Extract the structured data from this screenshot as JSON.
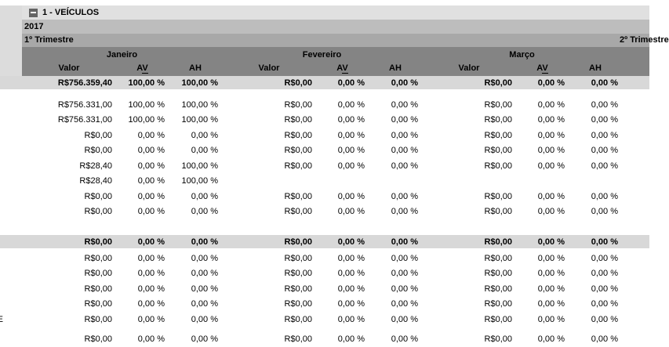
{
  "tree": {
    "label": "1 - VEÍCULOS"
  },
  "icons": {
    "collapse": "minus-icon"
  },
  "header": {
    "year": "2017",
    "quarter_current": "1º Trimestre",
    "quarter_next": "2º Trimestre",
    "months": [
      "Janeiro",
      "Fevereiro",
      "Março"
    ],
    "columns": {
      "valor": "Valor",
      "av": "AV",
      "ah": "AH"
    }
  },
  "colors": {
    "tree_band_bg": "#e0e0e0",
    "gutter_bg": "#dcdcdc",
    "year_band_bg": "#bdbdbd",
    "quarter_band_bg": "#a8a8a8",
    "month_band_bg": "#848484",
    "summary_row_bg": "#d8d8d8",
    "collapse_icon_bg": "#646464"
  },
  "table": {
    "rows": [
      {
        "kind": "summary",
        "gutter": "",
        "cells": [
          "R$756.359,40",
          "100,00 %",
          "100,00 %",
          "R$0,00",
          "0,00 %",
          "0,00 %",
          "R$0,00",
          "0,00 %",
          "0,00 %"
        ]
      },
      {
        "kind": "data",
        "gutter": "",
        "cells": [
          "R$756.331,00",
          "100,00 %",
          "100,00 %",
          "R$0,00",
          "0,00 %",
          "0,00 %",
          "R$0,00",
          "0,00 %",
          "0,00 %"
        ]
      },
      {
        "kind": "data",
        "gutter": "",
        "cells": [
          "R$756.331,00",
          "100,00 %",
          "100,00 %",
          "R$0,00",
          "0,00 %",
          "0,00 %",
          "R$0,00",
          "0,00 %",
          "0,00 %"
        ]
      },
      {
        "kind": "data",
        "gutter": "",
        "cells": [
          "R$0,00",
          "0,00 %",
          "0,00 %",
          "R$0,00",
          "0,00 %",
          "0,00 %",
          "R$0,00",
          "0,00 %",
          "0,00 %"
        ]
      },
      {
        "kind": "data",
        "gutter": "",
        "cells": [
          "R$0,00",
          "0,00 %",
          "0,00 %",
          "R$0,00",
          "0,00 %",
          "0,00 %",
          "R$0,00",
          "0,00 %",
          "0,00 %"
        ]
      },
      {
        "kind": "data",
        "gutter": "",
        "cells": [
          "R$28,40",
          "0,00 %",
          "100,00 %",
          "R$0,00",
          "0,00 %",
          "0,00 %",
          "R$0,00",
          "0,00 %",
          "0,00 %"
        ]
      },
      {
        "kind": "data",
        "gutter": "",
        "cells": [
          "R$28,40",
          "0,00 %",
          "100,00 %",
          "",
          "",
          "",
          "",
          "",
          ""
        ]
      },
      {
        "kind": "data",
        "gutter": "",
        "cells": [
          "R$0,00",
          "0,00 %",
          "0,00 %",
          "R$0,00",
          "0,00 %",
          "0,00 %",
          "R$0,00",
          "0,00 %",
          "0,00 %"
        ]
      },
      {
        "kind": "data",
        "gutter": "",
        "cells": [
          "R$0,00",
          "0,00 %",
          "0,00 %",
          "R$0,00",
          "0,00 %",
          "0,00 %",
          "R$0,00",
          "0,00 %",
          "0,00 %"
        ]
      },
      {
        "kind": "summary",
        "gutter": "",
        "cells": [
          "R$0,00",
          "0,00 %",
          "0,00 %",
          "R$0,00",
          "0,00 %",
          "0,00 %",
          "R$0,00",
          "0,00 %",
          "0,00 %"
        ]
      },
      {
        "kind": "data",
        "gutter": "",
        "cells": [
          "R$0,00",
          "0,00 %",
          "0,00 %",
          "R$0,00",
          "0,00 %",
          "0,00 %",
          "R$0,00",
          "0,00 %",
          "0,00 %"
        ]
      },
      {
        "kind": "data",
        "gutter": "",
        "cells": [
          "R$0,00",
          "0,00 %",
          "0,00 %",
          "R$0,00",
          "0,00 %",
          "0,00 %",
          "R$0,00",
          "0,00 %",
          "0,00 %"
        ]
      },
      {
        "kind": "data",
        "gutter": "",
        "cells": [
          "R$0,00",
          "0,00 %",
          "0,00 %",
          "R$0,00",
          "0,00 %",
          "0,00 %",
          "R$0,00",
          "0,00 %",
          "0,00 %"
        ]
      },
      {
        "kind": "data",
        "gutter": "",
        "cells": [
          "R$0,00",
          "0,00 %",
          "0,00 %",
          "R$0,00",
          "0,00 %",
          "0,00 %",
          "R$0,00",
          "0,00 %",
          "0,00 %"
        ]
      },
      {
        "kind": "data",
        "gutter": "E",
        "cells": [
          "R$0,00",
          "0,00 %",
          "0,00 %",
          "R$0,00",
          "0,00 %",
          "0,00 %",
          "R$0,00",
          "0,00 %",
          "0,00 %"
        ]
      },
      {
        "kind": "data",
        "gutter": "",
        "cells": [
          "R$0,00",
          "0,00 %",
          "0,00 %",
          "R$0,00",
          "0,00 %",
          "0,00 %",
          "R$0,00",
          "0,00 %",
          "0,00 %"
        ]
      }
    ]
  }
}
